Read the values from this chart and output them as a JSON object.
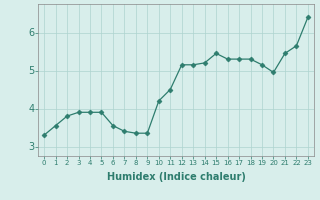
{
  "x": [
    0,
    1,
    2,
    3,
    4,
    5,
    6,
    7,
    8,
    9,
    10,
    11,
    12,
    13,
    14,
    15,
    16,
    17,
    18,
    19,
    20,
    21,
    22,
    23
  ],
  "y": [
    3.3,
    3.55,
    3.8,
    3.9,
    3.9,
    3.9,
    3.55,
    3.4,
    3.35,
    3.35,
    4.2,
    4.5,
    5.15,
    5.15,
    5.2,
    5.45,
    5.3,
    5.3,
    5.3,
    5.15,
    4.95,
    5.45,
    5.65,
    6.4
  ],
  "xlabel": "Humidex (Indice chaleur)",
  "xlim": [
    -0.5,
    23.5
  ],
  "ylim": [
    2.75,
    6.75
  ],
  "yticks": [
    3,
    4,
    5,
    6
  ],
  "xticks": [
    0,
    1,
    2,
    3,
    4,
    5,
    6,
    7,
    8,
    9,
    10,
    11,
    12,
    13,
    14,
    15,
    16,
    17,
    18,
    19,
    20,
    21,
    22,
    23
  ],
  "line_color": "#2e7d6e",
  "marker": "D",
  "marker_size": 2.5,
  "bg_color": "#d8eeeb",
  "grid_color": "#aed4cf",
  "tick_label_color": "#2e7d6e",
  "xlabel_fontsize": 7,
  "xlabel_fontweight": "bold",
  "ytick_fontsize": 7,
  "xtick_fontsize": 5
}
